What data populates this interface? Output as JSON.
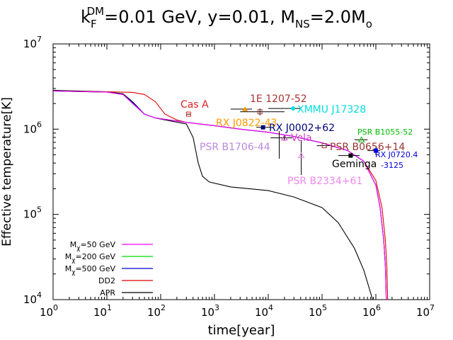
{
  "chart_data": {
    "type": "line",
    "title": {
      "k": "k",
      "k_sub": "F",
      "k_sup": "DM",
      "rest1": "=0.01 GeV, y=0.01, M",
      "m_sub": "NS",
      "rest2": "=2.0M",
      "o_sub": "o"
    },
    "xlabel": "time[year]",
    "ylabel": "Effective temperature[K]",
    "xscale": "log",
    "yscale": "log",
    "xlim": [
      1,
      10000000
    ],
    "ylim": [
      10000,
      10000000
    ],
    "x_ticks": [
      {
        "value": 1,
        "base": "10",
        "exp": "0"
      },
      {
        "value": 10,
        "base": "10",
        "exp": "1"
      },
      {
        "value": 100,
        "base": "10",
        "exp": "2"
      },
      {
        "value": 1000,
        "base": "10",
        "exp": "3"
      },
      {
        "value": 10000,
        "base": "10",
        "exp": "4"
      },
      {
        "value": 100000,
        "base": "10",
        "exp": "5"
      },
      {
        "value": 1000000,
        "base": "10",
        "exp": "6"
      },
      {
        "value": 10000000,
        "base": "10",
        "exp": "7"
      }
    ],
    "y_ticks": [
      {
        "value": 10000,
        "base": "10",
        "exp": "4"
      },
      {
        "value": 100000,
        "base": "10",
        "exp": "5"
      },
      {
        "value": 1000000,
        "base": "10",
        "exp": "6"
      },
      {
        "value": 10000000,
        "base": "10",
        "exp": "7"
      }
    ],
    "series": [
      {
        "name": "M",
        "sub": "χ",
        "suffix": "=50 GeV",
        "color": "#ff00ff",
        "points": [
          [
            1,
            2800000.0
          ],
          [
            10,
            2720000.0
          ],
          [
            20,
            2550000.0
          ],
          [
            30,
            2000000.0
          ],
          [
            50,
            1500000.0
          ],
          [
            80,
            1350000.0
          ],
          [
            150,
            1280000.0
          ],
          [
            300,
            1200000.0
          ],
          [
            1000,
            1100000.0
          ],
          [
            3000,
            1000000.0
          ],
          [
            10000,
            920000.0
          ],
          [
            30000,
            820000.0
          ],
          [
            100000,
            690000.0
          ],
          [
            300000,
            560000.0
          ],
          [
            600000,
            420000.0
          ],
          [
            1000000,
            220000.0
          ],
          [
            1200000,
            120000.0
          ],
          [
            1400000,
            50000.0
          ],
          [
            1500000,
            25000.0
          ],
          [
            1560000,
            10000.0
          ]
        ]
      },
      {
        "name": "M",
        "sub": "χ",
        "suffix": "=200 GeV",
        "color": "#00dd00",
        "points": [
          [
            1,
            2800000.0
          ],
          [
            10,
            2720000.0
          ],
          [
            20,
            2550000.0
          ],
          [
            30,
            2000000.0
          ],
          [
            50,
            1500000.0
          ],
          [
            80,
            1350000.0
          ],
          [
            150,
            1280000.0
          ],
          [
            300,
            1200000.0
          ],
          [
            1000,
            1100000.0
          ],
          [
            3000,
            1000000.0
          ],
          [
            10000,
            920000.0
          ],
          [
            30000,
            820000.0
          ],
          [
            100000,
            690000.0
          ],
          [
            300000,
            560000.0
          ],
          [
            600000,
            420000.0
          ],
          [
            1000000,
            220000.0
          ],
          [
            1200000,
            120000.0
          ],
          [
            1400000,
            50000.0
          ],
          [
            1500000,
            25000.0
          ],
          [
            1560000,
            10000.0
          ]
        ]
      },
      {
        "name": "M",
        "sub": "χ",
        "suffix": "=500 GeV",
        "color": "#0000cc",
        "points": [
          [
            1,
            2800000.0
          ],
          [
            10,
            2720000.0
          ],
          [
            20,
            2550000.0
          ],
          [
            30,
            2050000.0
          ],
          [
            50,
            1500000.0
          ],
          [
            80,
            1350000.0
          ],
          [
            150,
            1280000.0
          ],
          [
            300,
            1200000.0
          ],
          [
            1000,
            1100000.0
          ],
          [
            3000,
            1000000.0
          ],
          [
            10000,
            920000.0
          ],
          [
            30000,
            820000.0
          ],
          [
            100000,
            690000.0
          ],
          [
            300000,
            560000.0
          ],
          [
            600000,
            420000.0
          ],
          [
            1000000,
            220000.0
          ],
          [
            1200000,
            120000.0
          ],
          [
            1400000,
            50000.0
          ],
          [
            1500000,
            25000.0
          ],
          [
            1560000,
            10000.0
          ]
        ]
      },
      {
        "name": "DD2",
        "sub": "",
        "suffix": "",
        "color": "#dd0000",
        "points": [
          [
            1,
            2800000.0
          ],
          [
            10,
            2750000.0
          ],
          [
            30,
            2700000.0
          ],
          [
            50,
            2550000.0
          ],
          [
            80,
            2100000.0
          ],
          [
            120,
            1500000.0
          ],
          [
            200,
            1280000.0
          ],
          [
            300,
            1200000.0
          ],
          [
            1000,
            1100000.0
          ],
          [
            3000,
            1000000.0
          ],
          [
            10000,
            920000.0
          ],
          [
            30000,
            820000.0
          ],
          [
            100000,
            690000.0
          ],
          [
            300000,
            560000.0
          ],
          [
            600000,
            420000.0
          ],
          [
            1000000,
            250000.0
          ],
          [
            1300000,
            120000.0
          ],
          [
            1500000,
            50000.0
          ],
          [
            1600000,
            25000.0
          ],
          [
            1660000,
            10000.0
          ]
        ]
      },
      {
        "name": "APR",
        "sub": "",
        "suffix": "",
        "color": "#000000",
        "points": [
          [
            1,
            2850000.0
          ],
          [
            10,
            2750000.0
          ],
          [
            20,
            2600000.0
          ],
          [
            30,
            2100000.0
          ],
          [
            50,
            1500000.0
          ],
          [
            80,
            1350000.0
          ],
          [
            150,
            1250000.0
          ],
          [
            300,
            1150000.0
          ],
          [
            400,
            800000.0
          ],
          [
            500,
            400000.0
          ],
          [
            600,
            280000.0
          ],
          [
            800,
            240000.0
          ],
          [
            2000,
            210000.0
          ],
          [
            10000,
            190000.0
          ],
          [
            30000,
            160000.0
          ],
          [
            100000,
            120000.0
          ],
          [
            200000,
            80000.0
          ],
          [
            400000,
            40000.0
          ],
          [
            600000,
            22000.0
          ],
          [
            800000,
            12000.0
          ],
          [
            870000,
            10000.0
          ]
        ]
      }
    ],
    "observations": [
      {
        "label": "Cas A",
        "x": 330,
        "y": 1500000.0,
        "color": "#dd2222",
        "xerr": [
          300,
          360
        ],
        "yerr": null,
        "marker": "open-square"
      },
      {
        "label": "1E 1207-52",
        "x": 7000,
        "y": 1600000.0,
        "color": "#aa3333",
        "xerr": [
          3000,
          20000
        ],
        "yerr": [
          1450000.0,
          1750000.0
        ],
        "marker": "open-square"
      },
      {
        "label": "RX J0822-43",
        "x": 3700,
        "y": 1720000.0,
        "color": "#ff9900",
        "xerr": [
          2000,
          5000
        ],
        "yerr": null,
        "marker": "filled-triangle"
      },
      {
        "label": "XMMU J17328",
        "x": 29000,
        "y": 1750000.0,
        "color": "#00dddd",
        "xerr": [
          10000,
          40000
        ],
        "yerr": null,
        "marker": "filled-circle"
      },
      {
        "label": "RX J0002+62",
        "x": 8000,
        "y": 1050000.0,
        "color": "#000077",
        "xerr": [
          6000,
          11000
        ],
        "yerr": null,
        "marker": "filled-square"
      },
      {
        "label": "Vela",
        "x": 20000,
        "y": 790000.0,
        "color": "#cc44cc",
        "xerr": [
          11000,
          28000
        ],
        "yerr": [
          730000.0,
          850000.0
        ],
        "marker": "open-triangle"
      },
      {
        "label": "PSR B1706-44",
        "x": 16000,
        "y": 750000.0,
        "color": "#bb88dd",
        "xerr": null,
        "yerr": [
          450000.0,
          950000.0
        ],
        "marker": "none"
      },
      {
        "label": "PSR B1055-52",
        "x": 540000,
        "y": 750000.0,
        "color": "#00bb00",
        "xerr": [
          400000,
          700000
        ],
        "yerr": null,
        "marker": "open-triangle"
      },
      {
        "label": "PSR B0656+14",
        "x": 110000,
        "y": 640000.0,
        "color": "#993333",
        "xerr": [
          80000,
          140000
        ],
        "yerr": null,
        "marker": "open-square"
      },
      {
        "label": "RX J0720.4-3125",
        "x": 1000000,
        "y": 560000.0,
        "color": "#0000dd",
        "xerr": [
          700000,
          1200000
        ],
        "yerr": [
          500000.0,
          610000.0
        ],
        "marker": "filled-square"
      },
      {
        "label": "PSR B2334+61",
        "x": 41000,
        "y": 490000.0,
        "color": "#ee88ee",
        "xerr": null,
        "yerr": [
          290000.0,
          730000.0
        ],
        "marker": "open-triangle"
      },
      {
        "label": "Geminga",
        "x": 340000,
        "y": 490000.0,
        "color": "#000000",
        "xerr": [
          200000,
          500000
        ],
        "yerr": null,
        "marker": "filled-square"
      }
    ]
  }
}
